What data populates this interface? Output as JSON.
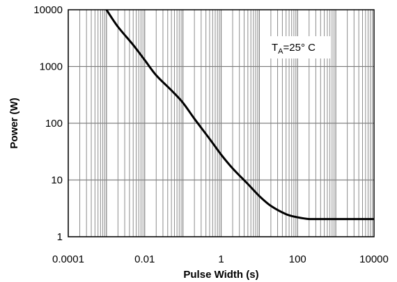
{
  "chart_data": {
    "type": "line",
    "xlabel": "Pulse Width (s)",
    "ylabel": "Power (W)",
    "x_scale": "log",
    "y_scale": "log",
    "xlim": [
      0.0001,
      10000
    ],
    "ylim": [
      1,
      10000
    ],
    "grid": true,
    "x_tick_labels": [
      "0.0001",
      "0.01",
      "1",
      "100",
      "10000"
    ],
    "x_tick_values": [
      0.0001,
      0.01,
      1,
      100,
      10000
    ],
    "y_tick_labels": [
      "1",
      "10",
      "100",
      "1000",
      "10000"
    ],
    "y_tick_values": [
      1,
      10,
      100,
      1000,
      10000
    ],
    "annotation": {
      "main": "T",
      "sub": "A",
      "rest": "=25° C"
    },
    "line_color": "#000000",
    "series": [
      {
        "x": [
          0.001,
          0.002,
          0.005,
          0.01,
          0.02,
          0.05,
          0.1,
          0.2,
          0.5,
          1,
          2,
          5,
          10,
          20,
          50,
          100,
          200,
          500,
          1000,
          10000
        ],
        "y": [
          10000,
          5000,
          2400,
          1300,
          700,
          380,
          230,
          120,
          53,
          28,
          16,
          8.5,
          5.2,
          3.5,
          2.5,
          2.2,
          2.05,
          2.05,
          2.05,
          2.05
        ]
      }
    ]
  }
}
